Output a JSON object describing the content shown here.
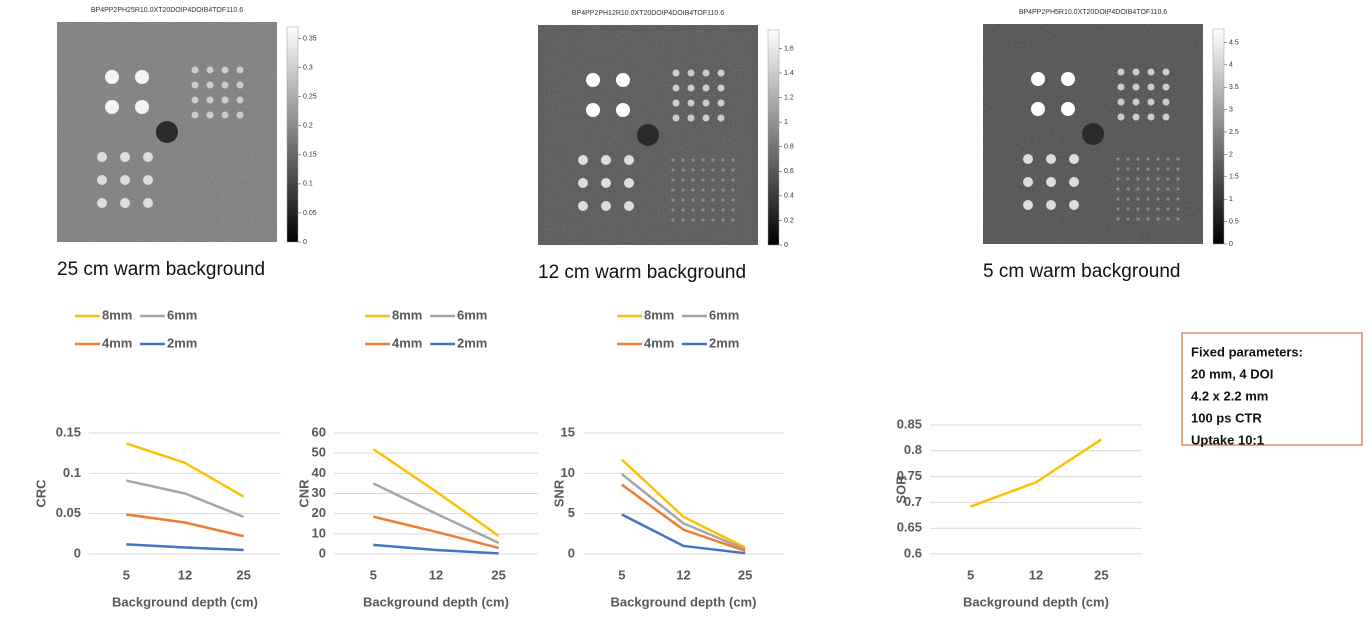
{
  "images": [
    {
      "title": "BP4PP2PH25R10.0XT20DOIP4DOIB4TOF110.6",
      "caption": "25 cm warm background",
      "clim": [
        0,
        0.37
      ],
      "cticks": [
        0,
        0.05,
        0.1,
        0.15,
        0.2,
        0.25,
        0.3,
        0.35
      ]
    },
    {
      "title": "BP4PP2PH12R10.0XT20DOIP4DOIB4TOF110.6",
      "caption": "12 cm warm background",
      "clim": [
        0,
        1.75
      ],
      "cticks": [
        0,
        0.2,
        0.4,
        0.6,
        0.8,
        1,
        1.2,
        1.4,
        1.6
      ]
    },
    {
      "title": "BP4PP2PH5R10.0XT20DOIP4DOIB4TOF110.6",
      "caption": "5 cm warm background",
      "clim": [
        0,
        4.8
      ],
      "cticks": [
        0,
        0.5,
        1,
        1.5,
        2,
        2.5,
        3,
        3.5,
        4,
        4.5
      ]
    }
  ],
  "chart_data": [
    {
      "type": "line",
      "categories": [
        "5",
        "12",
        "25"
      ],
      "x_label": "Background depth (cm)",
      "y_label": "CRC",
      "ylim": [
        0,
        0.15
      ],
      "yticks": [
        0,
        0.05,
        0.1,
        0.15
      ],
      "grid": true,
      "legend": "top",
      "series": [
        {
          "name": "8mm",
          "color": "#FFC000",
          "values": [
            0.137,
            0.113,
            0.071
          ]
        },
        {
          "name": "6mm",
          "color": "#A5A5A5",
          "values": [
            0.091,
            0.075,
            0.046
          ]
        },
        {
          "name": "4mm",
          "color": "#ED7D31",
          "values": [
            0.049,
            0.039,
            0.022
          ]
        },
        {
          "name": "2mm",
          "color": "#4472C4",
          "values": [
            0.012,
            0.008,
            0.005
          ]
        }
      ]
    },
    {
      "type": "line",
      "categories": [
        "5",
        "12",
        "25"
      ],
      "x_label": "Background depth (cm)",
      "y_label": "CNR",
      "ylim": [
        0,
        60
      ],
      "yticks": [
        0,
        10,
        20,
        30,
        40,
        50,
        60
      ],
      "grid": true,
      "legend": "top",
      "series": [
        {
          "name": "8mm",
          "color": "#FFC000",
          "values": [
            52,
            31,
            9
          ]
        },
        {
          "name": "6mm",
          "color": "#A5A5A5",
          "values": [
            35,
            20,
            5.5
          ]
        },
        {
          "name": "4mm",
          "color": "#ED7D31",
          "values": [
            18.5,
            11,
            3
          ]
        },
        {
          "name": "2mm",
          "color": "#4472C4",
          "values": [
            4.5,
            2,
            0.3
          ]
        }
      ]
    },
    {
      "type": "line",
      "categories": [
        "5",
        "12",
        "25"
      ],
      "x_label": "Background depth (cm)",
      "y_label": "SNR",
      "ylim": [
        0,
        15
      ],
      "yticks": [
        0,
        5,
        10,
        15
      ],
      "grid": true,
      "legend": "top",
      "series": [
        {
          "name": "8mm",
          "color": "#FFC000",
          "values": [
            11.7,
            4.6,
            0.8
          ]
        },
        {
          "name": "6mm",
          "color": "#A5A5A5",
          "values": [
            9.9,
            3.8,
            0.6
          ]
        },
        {
          "name": "4mm",
          "color": "#ED7D31",
          "values": [
            8.6,
            3.0,
            0.4
          ]
        },
        {
          "name": "2mm",
          "color": "#4472C4",
          "values": [
            4.9,
            1.0,
            0.1
          ]
        }
      ]
    },
    {
      "type": "line",
      "categories": [
        "5",
        "12",
        "25"
      ],
      "x_label": "Background depth (cm)",
      "y_label": "SOR",
      "ylim": [
        0.6,
        0.85
      ],
      "yticks": [
        0.6,
        0.65,
        0.7,
        0.75,
        0.8,
        0.85
      ],
      "grid": true,
      "series": [
        {
          "color": "#FFC000",
          "values": [
            0.692,
            0.739,
            0.822
          ]
        }
      ]
    }
  ],
  "note": {
    "title": "Fixed parameters:",
    "lines": [
      "20 mm, 4 DOI",
      "4.2 x 2.2 mm",
      "100 ps CTR",
      "Uptake 10:1"
    ]
  }
}
